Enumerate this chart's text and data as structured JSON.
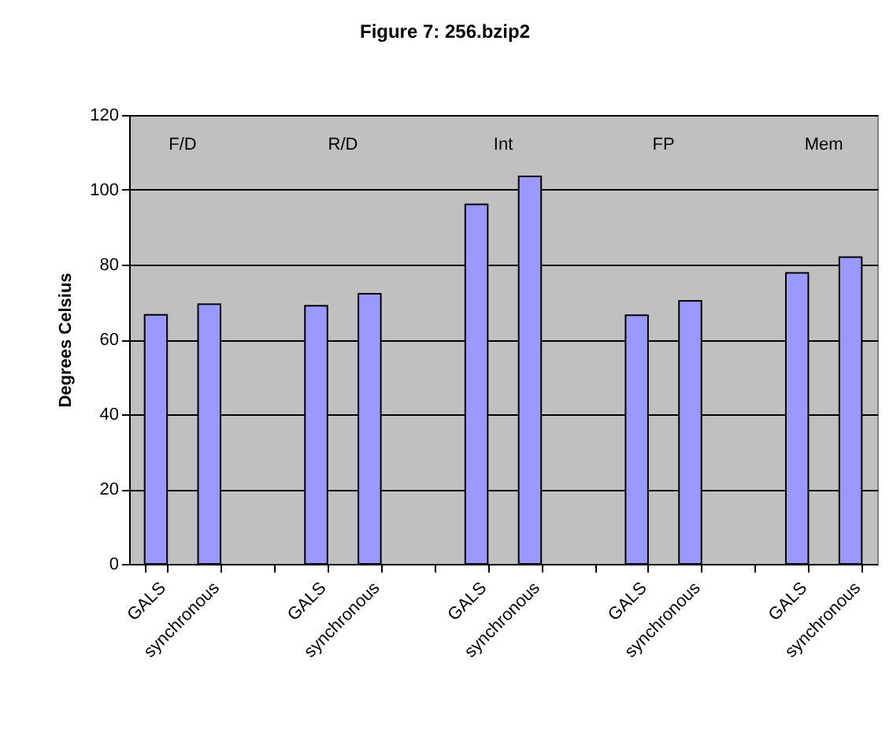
{
  "chart_data": {
    "type": "bar",
    "title": "Figure 7: 256.bzip2",
    "ylabel": "Degrees Celsius",
    "categories": [
      "GALS",
      "synchronous",
      null,
      "GALS",
      "synchronous",
      null,
      "GALS",
      "synchronous",
      null,
      "GALS",
      "synchronous",
      null,
      "GALS",
      "synchronous"
    ],
    "values": [
      66.6,
      69.4,
      null,
      69.0,
      72.2,
      null,
      96.1,
      103.6,
      null,
      66.5,
      70.3,
      null,
      77.8,
      82.0
    ],
    "color": "#9999ff",
    "ylim": [
      0,
      120
    ],
    "yticks": [
      0,
      20,
      40,
      60,
      80,
      100,
      120
    ],
    "grid": "y",
    "annotations": [
      "F/D",
      "R/D",
      "Int",
      "FP",
      "Mem"
    ]
  }
}
